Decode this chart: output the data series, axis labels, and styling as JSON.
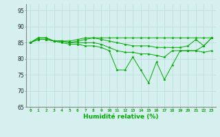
{
  "title": "",
  "xlabel": "Humidité relative (%)",
  "ylabel": "",
  "xlim": [
    -0.5,
    23.5
  ],
  "ylim": [
    65,
    97
  ],
  "yticks": [
    65,
    70,
    75,
    80,
    85,
    90,
    95
  ],
  "xticks": [
    0,
    1,
    2,
    3,
    4,
    5,
    6,
    7,
    8,
    9,
    10,
    11,
    12,
    13,
    14,
    15,
    16,
    17,
    18,
    19,
    20,
    21,
    22,
    23
  ],
  "bg_color": "#d5f0ee",
  "grid_color": "#b8ddd8",
  "line_color": "#00aa00",
  "line1": [
    85.0,
    86.5,
    86.5,
    85.5,
    85.5,
    85.5,
    86.0,
    86.5,
    86.5,
    86.5,
    86.5,
    86.5,
    86.5,
    86.5,
    86.5,
    86.5,
    86.5,
    86.5,
    86.5,
    86.5,
    86.5,
    86.5,
    86.5,
    86.5
  ],
  "line2": [
    85.0,
    86.5,
    86.5,
    85.5,
    85.5,
    85.0,
    85.5,
    86.0,
    86.5,
    86.0,
    85.5,
    85.0,
    84.5,
    84.0,
    84.0,
    84.0,
    83.5,
    83.5,
    83.5,
    83.5,
    84.0,
    86.0,
    84.0,
    86.5
  ],
  "line3": [
    85.0,
    86.0,
    86.0,
    85.5,
    85.5,
    85.0,
    85.0,
    85.0,
    85.0,
    84.5,
    83.5,
    82.5,
    82.0,
    82.0,
    81.5,
    81.5,
    81.0,
    80.5,
    82.5,
    82.5,
    82.5,
    82.5,
    82.0,
    82.5
  ],
  "line4": [
    85.0,
    86.0,
    86.0,
    85.5,
    85.0,
    84.5,
    84.5,
    84.0,
    84.0,
    83.5,
    82.5,
    76.5,
    76.5,
    80.5,
    76.5,
    72.5,
    79.0,
    73.5,
    78.0,
    82.5,
    82.5,
    82.5,
    84.0,
    86.5
  ]
}
